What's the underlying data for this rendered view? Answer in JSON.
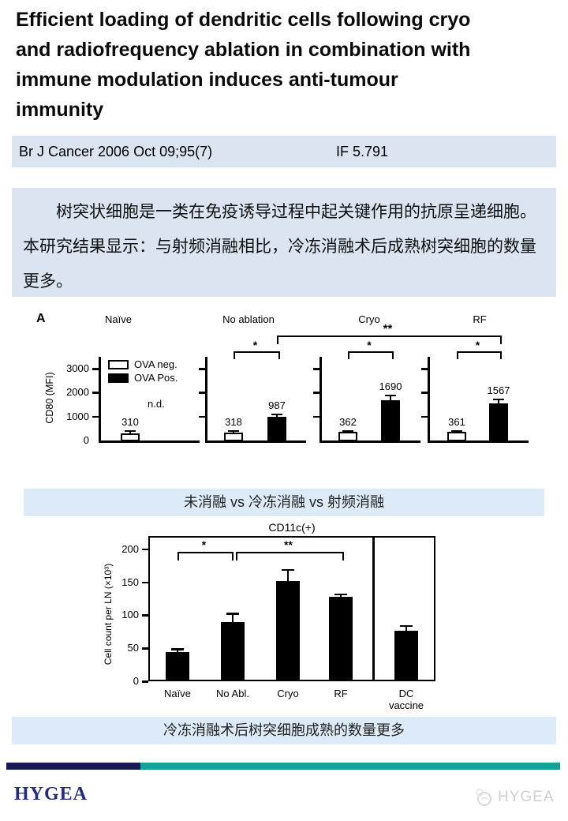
{
  "title": "Efficient loading of dendritic cells following cryo and radiofrequency ablation in combination with immune modulation induces anti-tumour immunity",
  "title_lines": [
    "Efficient loading of dendritic cells following cryo",
    "and radiofrequency ablation in combination with",
    "immune modulation induces anti-tumour",
    "immunity"
  ],
  "journal": {
    "citation": "Br J Cancer 2006 Oct 09;95(7)",
    "impact_factor": "IF 5.791"
  },
  "abstract_cn": "树突状细胞是一类在免疫诱导过程中起关键作用的抗原呈递细胞。本研究结果显示：与射频消融相比，冷冻消融术后成熟树突细胞的数量更多。",
  "captions": {
    "figure_a": "未消融 vs 冷冻消融 vs 射频消融",
    "figure_b": "冷冻消融术后树突细胞成熟的数量更多"
  },
  "footer": {
    "brand": "HYGEA",
    "watermark": "HYGEA",
    "logo_icon": "hygea-globe-icon"
  },
  "colors": {
    "panel_light_blue": "#dbe5f1",
    "caption_light_blue": "#dcebf7",
    "footer_navy": "#191a53",
    "footer_teal": "#14a39a",
    "brand_navy": "#252c7a",
    "figure_ink": "#000000"
  },
  "chart_data": [
    {
      "id": "figure-A",
      "type": "bar",
      "panel_label": "A",
      "ylabel": "CD80 (MFI)",
      "yticks": [
        0,
        1000,
        2000,
        3000
      ],
      "ylim": [
        0,
        3500
      ],
      "grid": false,
      "legend_position": "top-left of first panel",
      "legend": [
        {
          "label": "OVA neg.",
          "fill": "#ffffff"
        },
        {
          "label": "OVA Pos.",
          "fill": "#000000"
        }
      ],
      "panels": [
        {
          "title": "Naïve",
          "note": "n.d.",
          "bars": [
            {
              "series": "OVA neg.",
              "value": 310,
              "error": 120,
              "label": "310"
            }
          ]
        },
        {
          "title": "No ablation",
          "sig": "*",
          "bars": [
            {
              "series": "OVA neg.",
              "value": 318,
              "error": 120,
              "label": "318"
            },
            {
              "series": "OVA Pos.",
              "value": 987,
              "error": 120,
              "label": "987"
            }
          ]
        },
        {
          "title": "Cryo",
          "sig": "*",
          "bars": [
            {
              "series": "OVA neg.",
              "value": 362,
              "error": 60,
              "label": "362"
            },
            {
              "series": "OVA Pos.",
              "value": 1690,
              "error": 230,
              "label": "1690"
            }
          ]
        },
        {
          "title": "RF",
          "sig": "*",
          "bars": [
            {
              "series": "OVA neg.",
              "value": 361,
              "error": 60,
              "label": "361"
            },
            {
              "series": "OVA Pos.",
              "value": 1567,
              "error": 180,
              "label": "1567"
            }
          ]
        }
      ],
      "cross_panel_sig": {
        "label": "**",
        "from_panel": 1,
        "from_bar": 1,
        "to_panel": 3,
        "to_bar": 1
      }
    },
    {
      "id": "figure-B",
      "type": "bar",
      "title": "CD11c(+)",
      "ylabel": "Cell count per LN (×10³)",
      "yticks": [
        0,
        50,
        100,
        150,
        200
      ],
      "ylim": [
        0,
        220
      ],
      "grid": false,
      "categories": [
        "Naïve",
        "No Abl.",
        "Cryo",
        "RF",
        "DC vaccine"
      ],
      "values": [
        44,
        90,
        152,
        128,
        77
      ],
      "errors": [
        6,
        14,
        18,
        5,
        8
      ],
      "separator_before_index": 4,
      "sig_brackets": [
        {
          "label": "*",
          "from": 0,
          "to": 1
        },
        {
          "label": "**",
          "from": 1,
          "to": 3
        }
      ]
    }
  ]
}
